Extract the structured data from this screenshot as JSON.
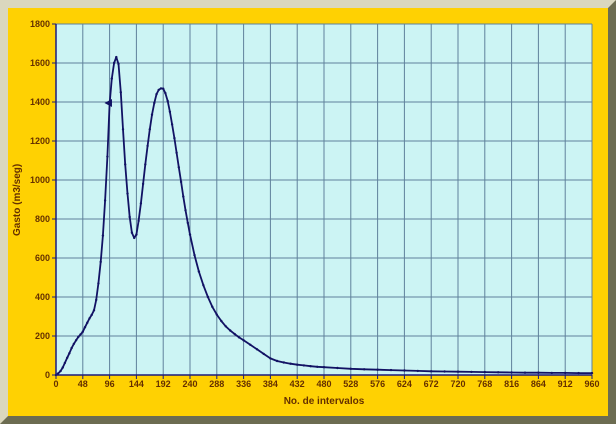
{
  "frame": {
    "background_color": "#ffd102",
    "bevel_light_color": "#dad7be",
    "bevel_dark_color": "#6c6c51"
  },
  "chart_data": {
    "type": "line",
    "title": "",
    "xlabel": "No. de intervalos",
    "ylabel": "Gasto (m3/seg)",
    "xlim": [
      0,
      960
    ],
    "ylim": [
      0,
      1800
    ],
    "grid": true,
    "legend": "none",
    "marker": "dot",
    "x_ticks": [
      0,
      48,
      96,
      144,
      192,
      240,
      288,
      336,
      384,
      432,
      480,
      528,
      576,
      624,
      672,
      720,
      768,
      816,
      864,
      912,
      960
    ],
    "y_ticks": [
      0,
      200,
      400,
      600,
      800,
      1000,
      1200,
      1400,
      1600,
      1800
    ],
    "colors": {
      "plot_background": "#ccf4f4",
      "grid": "#5f819b",
      "axis": "#1b1b7e",
      "series": "#121264",
      "tick_label": "#653000"
    },
    "annotations": {
      "triangle_marker": [
        94,
        1395
      ]
    },
    "series": [
      {
        "name": "Gasto",
        "points": [
          [
            0,
            0
          ],
          [
            4,
            8
          ],
          [
            8,
            20
          ],
          [
            12,
            38
          ],
          [
            16,
            62
          ],
          [
            20,
            88
          ],
          [
            24,
            112
          ],
          [
            28,
            138
          ],
          [
            32,
            160
          ],
          [
            36,
            178
          ],
          [
            40,
            195
          ],
          [
            44,
            208
          ],
          [
            48,
            222
          ],
          [
            52,
            245
          ],
          [
            56,
            268
          ],
          [
            60,
            290
          ],
          [
            64,
            308
          ],
          [
            68,
            332
          ],
          [
            72,
            385
          ],
          [
            76,
            470
          ],
          [
            80,
            580
          ],
          [
            84,
            715
          ],
          [
            88,
            895
          ],
          [
            92,
            1120
          ],
          [
            96,
            1390
          ],
          [
            100,
            1520
          ],
          [
            104,
            1600
          ],
          [
            108,
            1630
          ],
          [
            112,
            1595
          ],
          [
            116,
            1450
          ],
          [
            120,
            1260
          ],
          [
            124,
            1080
          ],
          [
            128,
            930
          ],
          [
            132,
            810
          ],
          [
            136,
            730
          ],
          [
            140,
            703
          ],
          [
            144,
            720
          ],
          [
            148,
            790
          ],
          [
            152,
            880
          ],
          [
            156,
            980
          ],
          [
            160,
            1080
          ],
          [
            164,
            1175
          ],
          [
            168,
            1260
          ],
          [
            172,
            1335
          ],
          [
            176,
            1395
          ],
          [
            180,
            1440
          ],
          [
            184,
            1462
          ],
          [
            188,
            1470
          ],
          [
            192,
            1468
          ],
          [
            196,
            1445
          ],
          [
            200,
            1405
          ],
          [
            204,
            1350
          ],
          [
            208,
            1285
          ],
          [
            212,
            1215
          ],
          [
            216,
            1140
          ],
          [
            220,
            1065
          ],
          [
            224,
            990
          ],
          [
            228,
            915
          ],
          [
            232,
            845
          ],
          [
            236,
            780
          ],
          [
            240,
            720
          ],
          [
            248,
            615
          ],
          [
            256,
            530
          ],
          [
            264,
            460
          ],
          [
            272,
            400
          ],
          [
            280,
            350
          ],
          [
            288,
            310
          ],
          [
            296,
            277
          ],
          [
            304,
            250
          ],
          [
            312,
            228
          ],
          [
            320,
            210
          ],
          [
            328,
            193
          ],
          [
            336,
            178
          ],
          [
            348,
            155
          ],
          [
            360,
            132
          ],
          [
            372,
            108
          ],
          [
            384,
            85
          ],
          [
            396,
            72
          ],
          [
            408,
            64
          ],
          [
            420,
            58
          ],
          [
            432,
            53
          ],
          [
            444,
            49
          ],
          [
            456,
            45
          ],
          [
            468,
            42
          ],
          [
            480,
            40
          ],
          [
            504,
            36
          ],
          [
            528,
            32
          ],
          [
            552,
            29
          ],
          [
            576,
            27
          ],
          [
            600,
            25
          ],
          [
            624,
            23
          ],
          [
            648,
            21
          ],
          [
            672,
            19
          ],
          [
            696,
            18
          ],
          [
            720,
            17
          ],
          [
            744,
            16
          ],
          [
            768,
            15
          ],
          [
            792,
            14
          ],
          [
            816,
            13
          ],
          [
            840,
            12
          ],
          [
            864,
            12
          ],
          [
            888,
            11
          ],
          [
            912,
            11
          ],
          [
            936,
            10
          ],
          [
            960,
            10
          ]
        ]
      }
    ]
  }
}
